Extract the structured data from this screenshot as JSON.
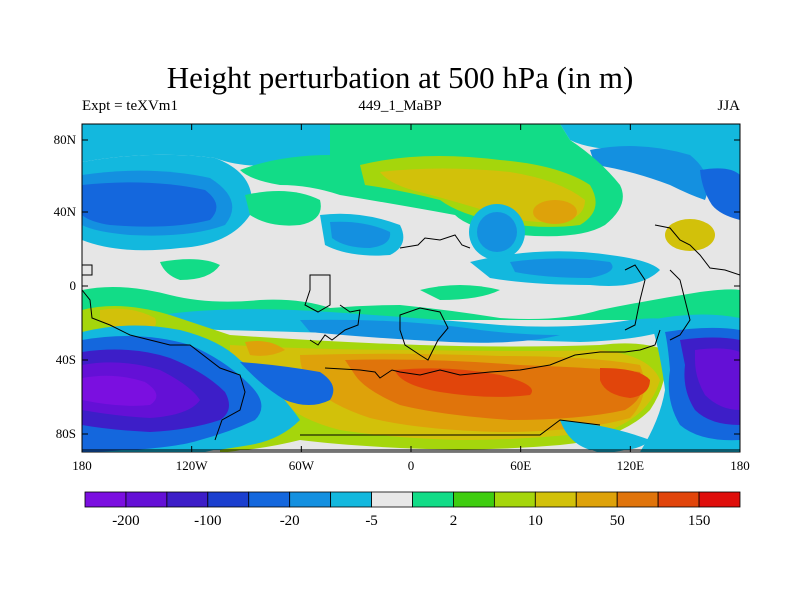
{
  "title": "Height perturbation at 500 hPa (in m)",
  "left_subtitle": "Expt = teXVm1",
  "center_subtitle": "449_1_MaBP",
  "right_subtitle": "JJA",
  "y_ticks": [
    "80N",
    "40N",
    "0",
    "40S",
    "80S"
  ],
  "x_ticks": [
    "180",
    "120W",
    "60W",
    "0",
    "60E",
    "120E",
    "180"
  ],
  "colorbar": {
    "colors": [
      "#7b0fe0",
      "#6410d6",
      "#3d1ec8",
      "#1b3fcf",
      "#1467dd",
      "#1490e0",
      "#13b8de",
      "#e8e8e8",
      "#12dc87",
      "#3fcd10",
      "#a5d60c",
      "#d2c10a",
      "#dea20a",
      "#e0740b",
      "#e1450b",
      "#df0e0b"
    ],
    "labels": [
      "-200",
      "-100",
      "-20",
      "-5",
      "2",
      "10",
      "50",
      "150"
    ]
  },
  "palette": {
    "missing": "#e6e6e6",
    "cyan": "#13b8de",
    "ltblue": "#1490e0",
    "blue": "#1467dd",
    "dkblue": "#1b3fcf",
    "indigo": "#3d1ec8",
    "purple": "#6410d6",
    "violet": "#7b0fe0",
    "green": "#12dc87",
    "lime": "#3fcd10",
    "yellowgreen": "#a5d60c",
    "olive": "#d2c10a",
    "orange": "#dea20a",
    "dkorange": "#e0740b",
    "red": "#e1450b"
  }
}
